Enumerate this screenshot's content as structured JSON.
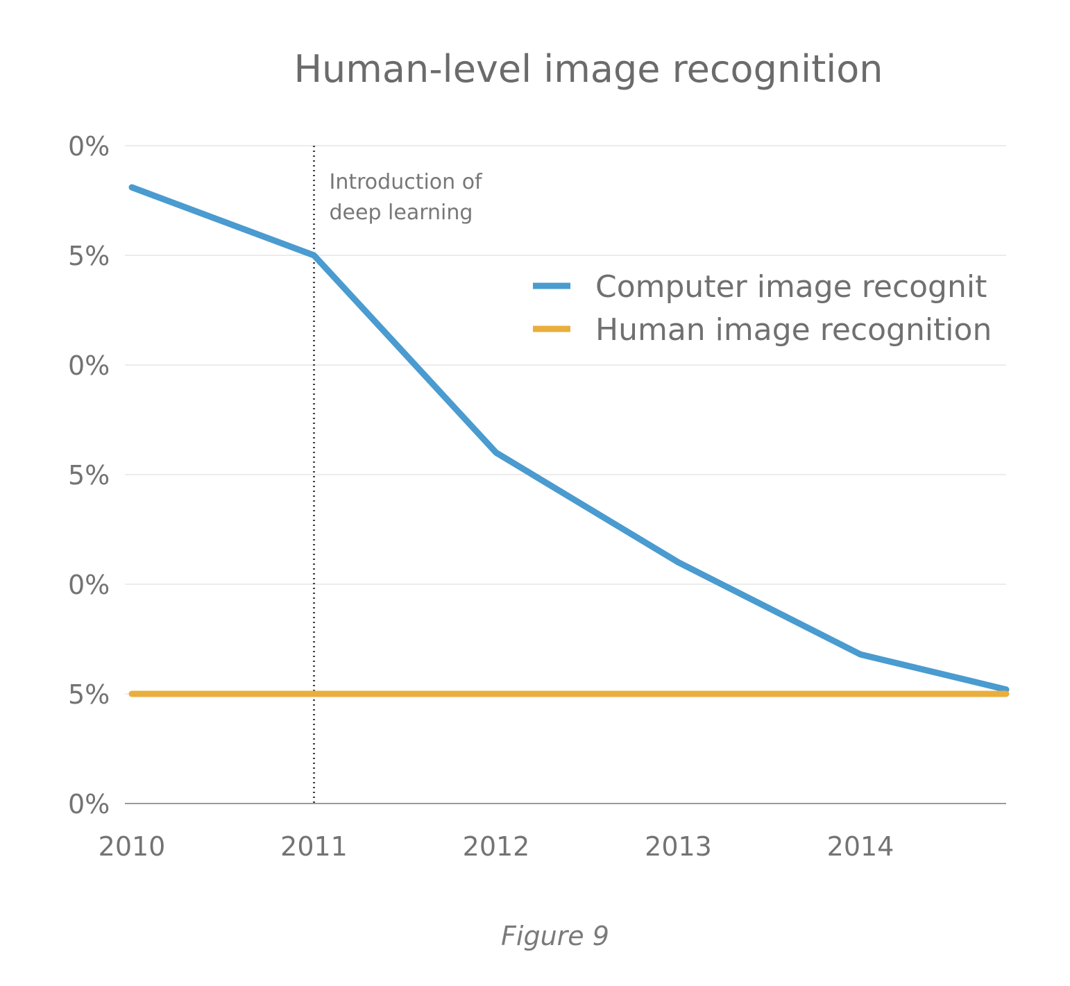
{
  "chart_data": {
    "type": "line",
    "title": "Human-level image recognition",
    "xlabel": "",
    "ylabel": "",
    "x_ticks": [
      "2010",
      "2011",
      "2012",
      "2013",
      "2014"
    ],
    "y_ticks": [
      "0%",
      "5%",
      "0%",
      "5%",
      "0%",
      "5%",
      "0%"
    ],
    "xlim": [
      2010,
      2014.8
    ],
    "ylim": [
      0,
      30
    ],
    "grid": true,
    "legend_position": "top-right",
    "series": [
      {
        "name": "Computer image recognit",
        "color": "#4a9bcf",
        "x": [
          2010,
          2011,
          2012,
          2013,
          2014,
          2014.8
        ],
        "y": [
          28.1,
          25,
          16,
          11,
          6.8,
          5.2
        ]
      },
      {
        "name": "Human image recognition",
        "color": "#e9ae3d",
        "x": [
          2010,
          2014.8
        ],
        "y": [
          5,
          5
        ]
      }
    ],
    "annotations": [
      {
        "x": 2011,
        "lines": [
          "Introduction of",
          "deep learning"
        ],
        "style": "dotted-vertical"
      }
    ]
  },
  "caption": "Figure 9"
}
